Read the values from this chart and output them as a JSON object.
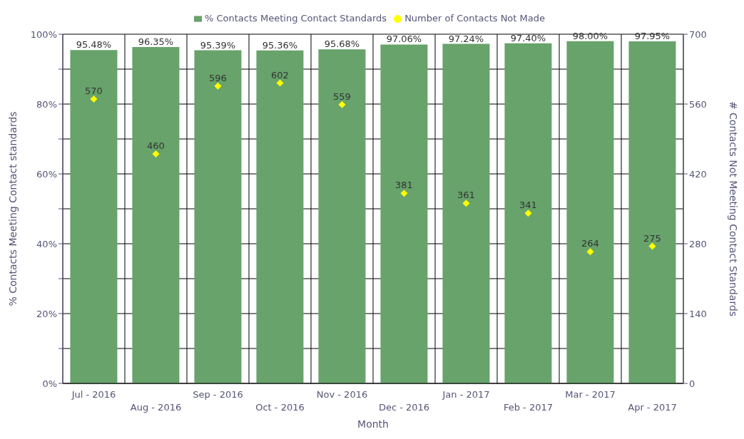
{
  "chart_data": {
    "type": "bar",
    "xlabel": "Month",
    "ylabel": "% Contacts Meeting Contact standards",
    "y2label": "# Contacts Not Meeting Contact Standards",
    "categories": [
      "Jul - 2016",
      "Aug - 2016",
      "Sep - 2016",
      "Oct - 2016",
      "Nov - 2016",
      "Dec - 2016",
      "Jan - 2017",
      "Feb - 2017",
      "Mar - 2017",
      "Apr - 2017"
    ],
    "series": [
      {
        "name": "% Contacts Meeting Contact Standards",
        "color": "#67a36b",
        "values": [
          95.48,
          96.35,
          95.39,
          95.36,
          95.68,
          97.06,
          97.24,
          97.4,
          98.0,
          97.95
        ],
        "value_labels": [
          "95.48%",
          "96.35%",
          "95.39%",
          "95.36%",
          "95.68%",
          "97.06%",
          "97.24%",
          "97.40%",
          "98.00%",
          "97.95%"
        ]
      },
      {
        "name": "Number of Contacts Not Made",
        "type": "scatter",
        "axis": "y2",
        "color": "#ffff00",
        "marker": "diamond",
        "values": [
          570,
          460,
          596,
          602,
          559,
          381,
          361,
          341,
          264,
          275
        ],
        "value_labels": [
          "570",
          "460",
          "596",
          "602",
          "559",
          "381",
          "361",
          "341",
          "264",
          "275"
        ]
      }
    ],
    "ylim": [
      0,
      100
    ],
    "yticks": [
      {
        "value": 0,
        "label": "0%"
      },
      {
        "value": 10,
        "label": null
      },
      {
        "value": 20,
        "label": "20%"
      },
      {
        "value": 30,
        "label": null
      },
      {
        "value": 40,
        "label": "40%"
      },
      {
        "value": 50,
        "label": null
      },
      {
        "value": 60,
        "label": "60%"
      },
      {
        "value": 70,
        "label": null
      },
      {
        "value": 80,
        "label": "80%"
      },
      {
        "value": 90,
        "label": null
      },
      {
        "value": 100,
        "label": "100%"
      }
    ],
    "y2lim": [
      0,
      700
    ],
    "y2ticks": [
      0,
      140,
      280,
      420,
      560,
      700
    ],
    "grid": true,
    "legend": "top"
  }
}
